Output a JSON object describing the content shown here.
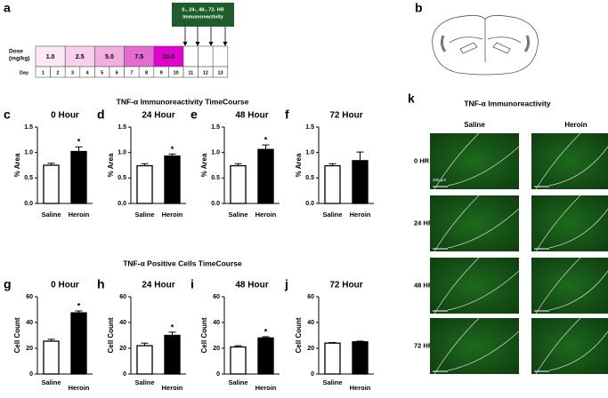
{
  "panel_a": {
    "label": "a",
    "box_text": [
      "0-, 24-, 48-, 72- HR",
      "Immunoreactivity"
    ],
    "dose_label": [
      "Dose",
      "(mg/kg)"
    ],
    "doses": [
      "1.0",
      "2.5",
      "5.0",
      "7.5",
      "10.0"
    ],
    "dose_colors": [
      "#fde8f4",
      "#f9d0ec",
      "#f3aee0",
      "#e56ad2",
      "#e000d0"
    ],
    "day_label": "Day",
    "days": [
      "1",
      "2",
      "3",
      "4",
      "5",
      "6",
      "7",
      "8",
      "9",
      "10",
      "11",
      "12",
      "13"
    ]
  },
  "panel_b": {
    "label": "b"
  },
  "section_titles": [
    "TNF-α Immunoreactivity TimeCourse",
    "TNF-α  Positive Cells TimeCourse"
  ],
  "chart_data": [
    {
      "type": "bar",
      "panel": "c",
      "title": "0 Hour",
      "ylabel": "% Area",
      "categories": [
        "Saline",
        "Heroin"
      ],
      "values": [
        0.75,
        1.02
      ],
      "errors": [
        0.04,
        0.09
      ],
      "colors": [
        "#ffffff",
        "#000000"
      ],
      "significance": [
        null,
        "*"
      ],
      "ylim": [
        0,
        1.5
      ],
      "yticks": [
        {
          "value": 0,
          "label": "0.0"
        },
        0.5,
        {
          "value": 1,
          "label": "1.0"
        },
        1.5
      ]
    },
    {
      "type": "bar",
      "panel": "d",
      "title": "24 Hour",
      "ylabel": "% Area",
      "categories": [
        "Saline",
        "Heroin"
      ],
      "values": [
        0.74,
        0.93
      ],
      "errors": [
        0.04,
        0.04
      ],
      "colors": [
        "#ffffff",
        "#000000"
      ],
      "significance": [
        null,
        "*"
      ],
      "ylim": [
        0,
        1.5
      ],
      "yticks": [
        {
          "value": 0,
          "label": "0.0"
        },
        0.5,
        {
          "value": 1,
          "label": "1.0"
        },
        1.5
      ]
    },
    {
      "type": "bar",
      "panel": "e",
      "title": "48 Hour",
      "ylabel": "% Area",
      "categories": [
        "Saline",
        "Heroin"
      ],
      "values": [
        0.74,
        1.06
      ],
      "errors": [
        0.04,
        0.09
      ],
      "colors": [
        "#ffffff",
        "#000000"
      ],
      "significance": [
        null,
        "*"
      ],
      "ylim": [
        0,
        1.5
      ],
      "yticks": [
        {
          "value": 0,
          "label": "0.0"
        },
        0.5,
        {
          "value": 1,
          "label": "1.0"
        },
        1.5
      ]
    },
    {
      "type": "bar",
      "panel": "f",
      "title": "72 Hour",
      "ylabel": "% Area",
      "categories": [
        "Saline",
        "Heroin"
      ],
      "values": [
        0.74,
        0.84
      ],
      "errors": [
        0.04,
        0.17
      ],
      "colors": [
        "#ffffff",
        "#000000"
      ],
      "significance": [
        null,
        null
      ],
      "ylim": [
        0,
        1.5
      ],
      "yticks": [
        {
          "value": 0,
          "label": "0.0"
        },
        0.5,
        {
          "value": 1,
          "label": "1.0"
        },
        1.5
      ]
    },
    {
      "type": "bar",
      "panel": "g",
      "title": "0 Hour",
      "ylabel": "Cell Count",
      "categories": [
        "Saline",
        "Heroin"
      ],
      "values": [
        25.5,
        47.5
      ],
      "errors": [
        1.5,
        1.5
      ],
      "colors": [
        "#ffffff",
        "#000000"
      ],
      "significance": [
        null,
        "*"
      ],
      "ylim": [
        0,
        60
      ],
      "yticks": [
        0,
        20,
        40,
        60
      ]
    },
    {
      "type": "bar",
      "panel": "h",
      "title": "24 Hour",
      "ylabel": "Cell Count",
      "categories": [
        "Saline",
        "Heroin"
      ],
      "values": [
        22,
        30
      ],
      "errors": [
        2,
        2.5
      ],
      "colors": [
        "#ffffff",
        "#000000"
      ],
      "significance": [
        null,
        "*"
      ],
      "ylim": [
        0,
        60
      ],
      "yticks": [
        0,
        20,
        40,
        60
      ]
    },
    {
      "type": "bar",
      "panel": "i",
      "title": "48 Hour",
      "ylabel": "Cell Count",
      "categories": [
        "Saline",
        "Heroin"
      ],
      "values": [
        21,
        28
      ],
      "errors": [
        1,
        1
      ],
      "colors": [
        "#ffffff",
        "#000000"
      ],
      "significance": [
        null,
        "*"
      ],
      "ylim": [
        0,
        60
      ],
      "yticks": [
        0,
        20,
        40,
        60
      ]
    },
    {
      "type": "bar",
      "panel": "j",
      "title": "72 Hour",
      "ylabel": "Cell Count",
      "categories": [
        "Saline",
        "Heroin"
      ],
      "values": [
        24,
        25
      ],
      "errors": [
        0.5,
        0.5
      ],
      "colors": [
        "#ffffff",
        "#000000"
      ],
      "significance": [
        null,
        null
      ],
      "ylim": [
        0,
        60
      ],
      "yticks": [
        0,
        20,
        40,
        60
      ]
    }
  ],
  "panel_k": {
    "label": "k",
    "title": "TNF-α Immunoreactivity",
    "columns": [
      "Saline",
      "Heroin"
    ],
    "rows": [
      "0 HR",
      "24 HR",
      "48 HR",
      "72 HR"
    ],
    "scale_bar": "200 µm"
  }
}
